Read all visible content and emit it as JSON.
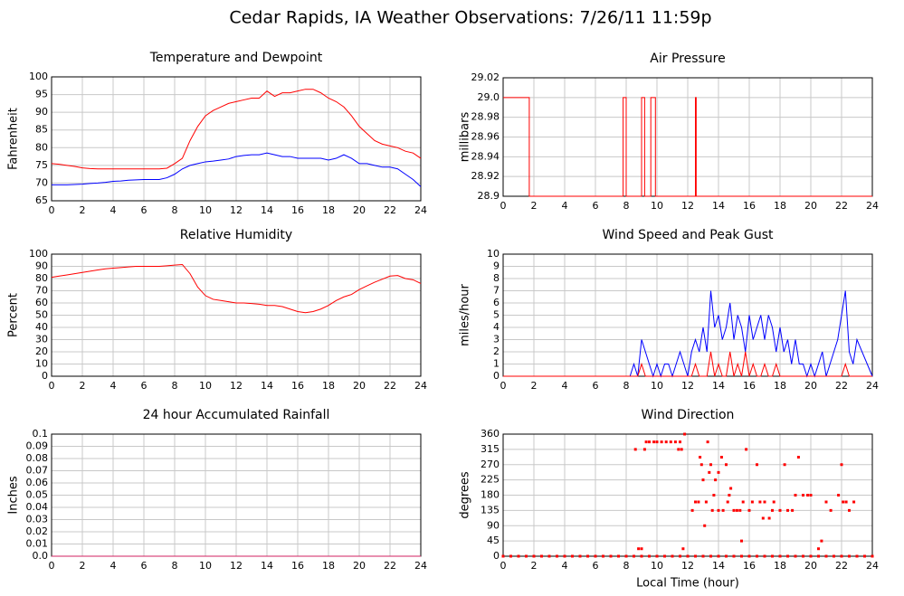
{
  "title": "Cedar Rapids, IA Weather Observations: 7/26/11 11:59p",
  "chart_data": [
    {
      "type": "line",
      "title": "Temperature and Dewpoint",
      "ylabel": "Fahrenheit",
      "x": [
        0,
        0.5,
        1,
        1.5,
        2,
        2.5,
        3,
        3.5,
        4,
        4.5,
        5,
        5.5,
        6,
        6.5,
        7,
        7.5,
        8,
        8.5,
        9,
        9.5,
        10,
        10.5,
        11,
        11.5,
        12,
        12.5,
        13,
        13.5,
        14,
        14.5,
        15,
        15.5,
        16,
        16.5,
        17,
        17.5,
        18,
        18.5,
        19,
        19.5,
        20,
        20.5,
        21,
        21.5,
        22,
        22.5,
        23,
        23.5,
        24
      ],
      "series": [
        {
          "color": "#ff0000",
          "values": [
            75.5,
            75.3,
            75,
            74.7,
            74.3,
            74.1,
            74,
            74,
            74,
            74,
            74,
            74,
            74,
            74,
            74,
            74.2,
            75.5,
            77,
            82,
            86,
            89,
            90.5,
            91.5,
            92.5,
            93,
            93.5,
            94,
            94,
            96,
            94.5,
            95.5,
            95.5,
            96,
            96.5,
            96.5,
            95.5,
            94,
            93,
            91.5,
            89,
            86,
            84,
            82,
            81,
            80.5,
            80,
            79,
            78.5,
            77
          ]
        },
        {
          "color": "#0000ff",
          "values": [
            69.5,
            69.5,
            69.5,
            69.6,
            69.7,
            69.9,
            70,
            70.2,
            70.5,
            70.6,
            70.8,
            70.9,
            71,
            71,
            71,
            71.5,
            72.5,
            74,
            75,
            75.5,
            76,
            76.2,
            76.5,
            76.8,
            77.5,
            77.8,
            78,
            78,
            78.5,
            78,
            77.5,
            77.5,
            77,
            77,
            77,
            77,
            76.5,
            77,
            78,
            77,
            75.5,
            75.5,
            75,
            74.5,
            74.5,
            74,
            72.5,
            71,
            69
          ]
        }
      ],
      "xlim": [
        0,
        24
      ],
      "ylim": [
        65,
        100
      ],
      "xticks": [
        0,
        2,
        4,
        6,
        8,
        10,
        12,
        14,
        16,
        18,
        20,
        22,
        24
      ],
      "yticks": [
        65,
        70,
        75,
        80,
        85,
        90,
        95,
        100
      ],
      "grid": true
    },
    {
      "type": "line",
      "title": "Air Pressure",
      "ylabel": "millibars",
      "x": [
        0,
        1.7,
        1.7,
        7.8,
        7.8,
        8.0,
        8.0,
        9.0,
        9.0,
        9.2,
        9.2,
        9.6,
        9.6,
        9.9,
        9.9,
        12.5,
        12.5,
        12.55,
        12.55,
        24
      ],
      "series": [
        {
          "color": "#ff0000",
          "values": [
            29,
            29,
            28.9,
            28.9,
            29,
            29,
            28.9,
            28.9,
            29,
            29,
            28.9,
            28.9,
            29,
            29,
            28.9,
            28.9,
            29,
            29,
            28.9,
            28.9
          ]
        }
      ],
      "xlim": [
        0,
        24
      ],
      "ylim": [
        28.9,
        29.02
      ],
      "xticks": [
        0,
        2,
        4,
        6,
        8,
        10,
        12,
        14,
        16,
        18,
        20,
        22,
        24
      ],
      "yticks": [
        28.9,
        28.92,
        28.94,
        28.96,
        28.98,
        {
          "value": 29,
          "label": "29.0"
        },
        29.02
      ],
      "grid": true
    },
    {
      "type": "line",
      "title": "Relative Humidity",
      "ylabel": "Percent",
      "x": [
        0,
        0.5,
        1,
        1.5,
        2,
        2.5,
        3,
        3.5,
        4,
        4.5,
        5,
        5.5,
        6,
        6.5,
        7,
        7.5,
        8,
        8.5,
        9,
        9.5,
        10,
        10.5,
        11,
        11.5,
        12,
        12.5,
        13,
        13.5,
        14,
        14.5,
        15,
        15.5,
        16,
        16.5,
        17,
        17.5,
        18,
        18.5,
        19,
        19.5,
        20,
        20.5,
        21,
        21.5,
        22,
        22.5,
        23,
        23.5,
        24
      ],
      "series": [
        {
          "color": "#ff0000",
          "values": [
            81,
            82,
            83,
            84,
            85,
            86,
            87,
            88,
            88.5,
            89,
            89.5,
            90,
            90,
            90,
            90,
            90.5,
            91,
            91.5,
            84,
            73,
            66,
            63,
            62,
            61,
            60,
            60,
            59.5,
            59,
            58,
            58,
            57,
            55,
            53,
            52,
            53,
            55,
            58,
            62,
            65,
            67,
            71,
            74,
            77,
            79.5,
            82,
            82.5,
            80,
            79,
            76
          ]
        }
      ],
      "xlim": [
        0,
        24
      ],
      "ylim": [
        0,
        100
      ],
      "xticks": [
        0,
        2,
        4,
        6,
        8,
        10,
        12,
        14,
        16,
        18,
        20,
        22,
        24
      ],
      "yticks": [
        0,
        10,
        20,
        30,
        40,
        50,
        60,
        70,
        80,
        90,
        100
      ],
      "grid": true
    },
    {
      "type": "line",
      "title": "Wind Speed and Peak Gust",
      "ylabel": "miles/hour",
      "x": [
        0,
        8.25,
        8.5,
        8.75,
        9,
        9.25,
        9.5,
        9.75,
        10,
        10.25,
        10.5,
        10.75,
        11,
        11.25,
        11.5,
        11.75,
        12,
        12.25,
        12.5,
        12.75,
        13,
        13.25,
        13.5,
        13.75,
        14,
        14.25,
        14.5,
        14.75,
        15,
        15.25,
        15.5,
        15.75,
        16,
        16.25,
        16.5,
        16.75,
        17,
        17.25,
        17.5,
        17.75,
        18,
        18.25,
        18.5,
        18.75,
        19,
        19.25,
        19.5,
        19.75,
        20,
        20.25,
        20.5,
        20.75,
        21,
        21.25,
        21.5,
        21.75,
        22,
        22.25,
        22.5,
        22.75,
        23,
        24
      ],
      "series": [
        {
          "color": "#0000ff",
          "values": [
            0,
            0,
            1,
            0,
            3,
            2,
            1,
            0,
            1,
            0,
            1,
            1,
            0,
            1,
            2,
            1,
            0,
            2,
            3,
            2,
            4,
            2,
            7,
            4,
            5,
            3,
            4,
            6,
            3,
            5,
            4,
            2,
            5,
            3,
            4,
            5,
            3,
            5,
            4,
            2,
            4,
            2,
            3,
            1,
            3,
            1,
            1,
            0,
            1,
            0,
            1,
            2,
            0,
            1,
            2,
            3,
            5,
            7,
            2,
            1,
            3,
            0
          ]
        },
        {
          "color": "#ff0000",
          "values": [
            0,
            0,
            0,
            0,
            1,
            0,
            0,
            0,
            0,
            0,
            0,
            0,
            0,
            0,
            0,
            0,
            0,
            0,
            1,
            0,
            0,
            0,
            2,
            0,
            1,
            0,
            0,
            2,
            0,
            1,
            0,
            2,
            0,
            1,
            0,
            0,
            1,
            0,
            0,
            1,
            0,
            0,
            0,
            0,
            0,
            0,
            0,
            0,
            0,
            0,
            0,
            0,
            0,
            0,
            0,
            0,
            0,
            1,
            0,
            0,
            0,
            0
          ]
        }
      ],
      "xlim": [
        0,
        24
      ],
      "ylim": [
        0,
        10
      ],
      "xticks": [
        0,
        2,
        4,
        6,
        8,
        10,
        12,
        14,
        16,
        18,
        20,
        22,
        24
      ],
      "yticks": [
        0,
        1,
        2,
        3,
        4,
        5,
        6,
        7,
        8,
        9,
        10
      ],
      "grid": true
    },
    {
      "type": "line",
      "title": "24 hour Accumulated Rainfall",
      "ylabel": "Inches",
      "x": [
        0,
        24
      ],
      "series": [
        {
          "color": "#d02060",
          "values": [
            0,
            0
          ]
        }
      ],
      "xlim": [
        0,
        24
      ],
      "ylim": [
        0,
        0.1
      ],
      "xticks": [
        0,
        2,
        4,
        6,
        8,
        10,
        12,
        14,
        16,
        18,
        20,
        22,
        24
      ],
      "yticks": [
        {
          "value": 0,
          "label": "0.0"
        },
        0.01,
        0.02,
        0.03,
        0.04,
        0.05,
        0.06,
        0.07,
        0.08,
        0.09,
        0.1
      ],
      "grid": true
    },
    {
      "type": "scatter",
      "title": "Wind Direction",
      "ylabel": "degrees",
      "xlabel": "Local Time (hour)",
      "x": [
        0,
        0.5,
        1,
        1.5,
        2,
        2.5,
        3,
        3.5,
        4,
        4.5,
        5,
        5.5,
        6,
        6.5,
        7,
        7.5,
        8,
        8.5,
        9,
        9.5,
        10,
        10.5,
        11,
        11.5,
        12,
        12.5,
        13,
        13.5,
        14,
        14.5,
        15,
        15.5,
        16,
        16.5,
        17,
        17.5,
        18,
        18.5,
        19,
        19.5,
        20,
        20.5,
        21,
        21.5,
        22,
        22.5,
        23,
        23.5,
        24,
        8.8,
        9.0,
        8.6,
        9.2,
        9.3,
        9.5,
        9.8,
        10,
        10.3,
        10.6,
        10.9,
        11.2,
        11.4,
        11.6,
        11.5,
        11.8,
        11.7,
        12.3,
        12.5,
        12.7,
        12.8,
        12.9,
        13,
        13.1,
        13.2,
        13.3,
        13.4,
        13.5,
        13.6,
        13.7,
        13.8,
        14,
        14,
        14.2,
        14.3,
        14.5,
        14.6,
        14.7,
        14.8,
        15,
        15.2,
        15.5,
        15.4,
        15.6,
        15.8,
        16,
        16.2,
        16.5,
        16.7,
        16.9,
        17,
        17.3,
        17.5,
        17.6,
        18,
        18.3,
        18.5,
        18.8,
        19,
        19.2,
        19.5,
        19.8,
        20,
        20.5,
        20.7,
        21,
        21.3,
        21.8,
        22,
        22.1,
        22.3,
        22.5,
        22.8
      ],
      "series": [
        {
          "color": "#ff0000",
          "values": [
            0,
            0,
            0,
            0,
            0,
            0,
            0,
            0,
            0,
            0,
            0,
            0,
            0,
            0,
            0,
            0,
            0,
            0,
            0,
            0,
            0,
            0,
            0,
            0,
            0,
            0,
            0,
            0,
            0,
            0,
            0,
            0,
            0,
            0,
            0,
            0,
            0,
            0,
            0,
            0,
            0,
            0,
            0,
            0,
            0,
            0,
            0,
            0,
            0,
            22,
            22,
            315,
            315,
            337,
            337,
            337,
            337,
            337,
            337,
            337,
            337,
            315,
            315,
            337,
            360,
            22,
            135,
            160,
            160,
            292,
            270,
            225,
            90,
            160,
            337,
            247,
            270,
            135,
            180,
            225,
            135,
            247,
            292,
            135,
            270,
            160,
            180,
            200,
            135,
            135,
            45,
            135,
            160,
            315,
            135,
            160,
            270,
            160,
            112,
            160,
            112,
            135,
            160,
            135,
            270,
            135,
            135,
            180,
            292,
            180,
            180,
            180,
            22,
            45,
            160,
            135,
            180,
            270,
            160,
            160,
            135,
            160
          ]
        }
      ],
      "xlim": [
        0,
        24
      ],
      "ylim": [
        0,
        360
      ],
      "xticks": [
        0,
        2,
        4,
        6,
        8,
        10,
        12,
        14,
        16,
        18,
        20,
        22,
        24
      ],
      "yticks": [
        0,
        45,
        90,
        135,
        180,
        225,
        270,
        315,
        360
      ],
      "grid": true
    }
  ]
}
